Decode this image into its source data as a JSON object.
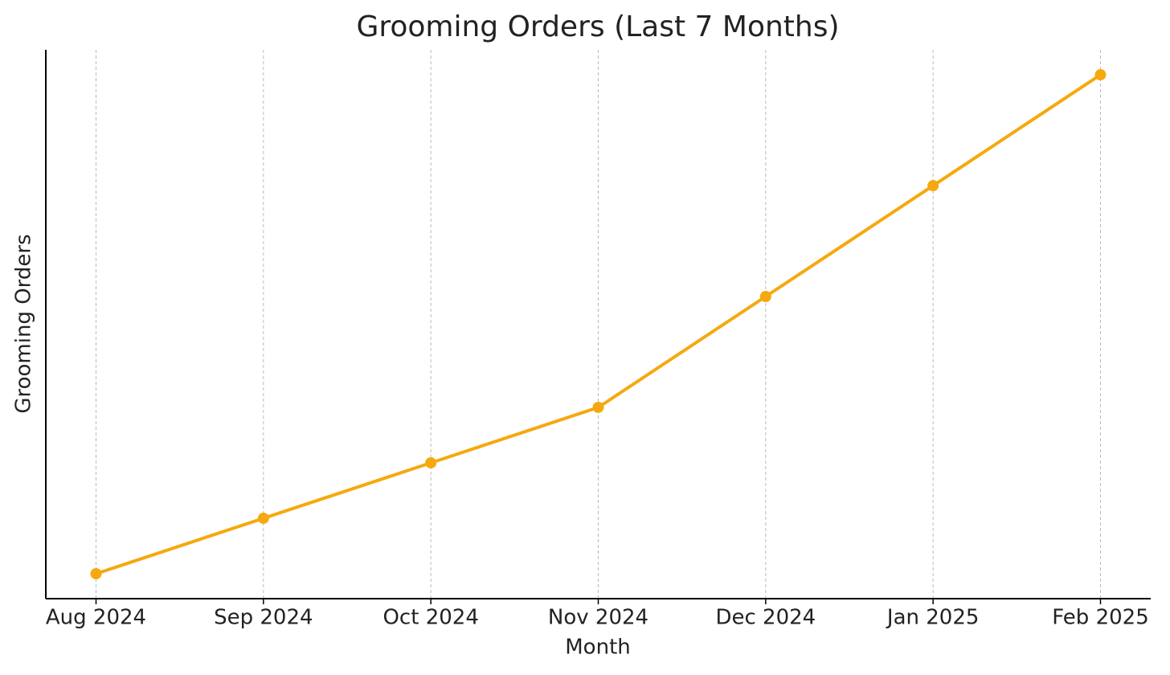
{
  "chart_data": {
    "type": "line",
    "title": "Grooming Orders (Last 7 Months)",
    "x_label": "Month",
    "y_label": "Grooming Orders",
    "categories": [
      "Aug 2024",
      "Sep 2024",
      "Oct 2024",
      "Nov 2024",
      "Dec 2024",
      "Jan 2025",
      "Feb 2025"
    ],
    "series": [
      {
        "name": "Grooming Orders",
        "color": "#f5a90f",
        "values": [
          10,
          20,
          30,
          40,
          60,
          80,
          100
        ]
      }
    ],
    "ylim": [
      5.5,
      104.5
    ],
    "grid": true
  }
}
